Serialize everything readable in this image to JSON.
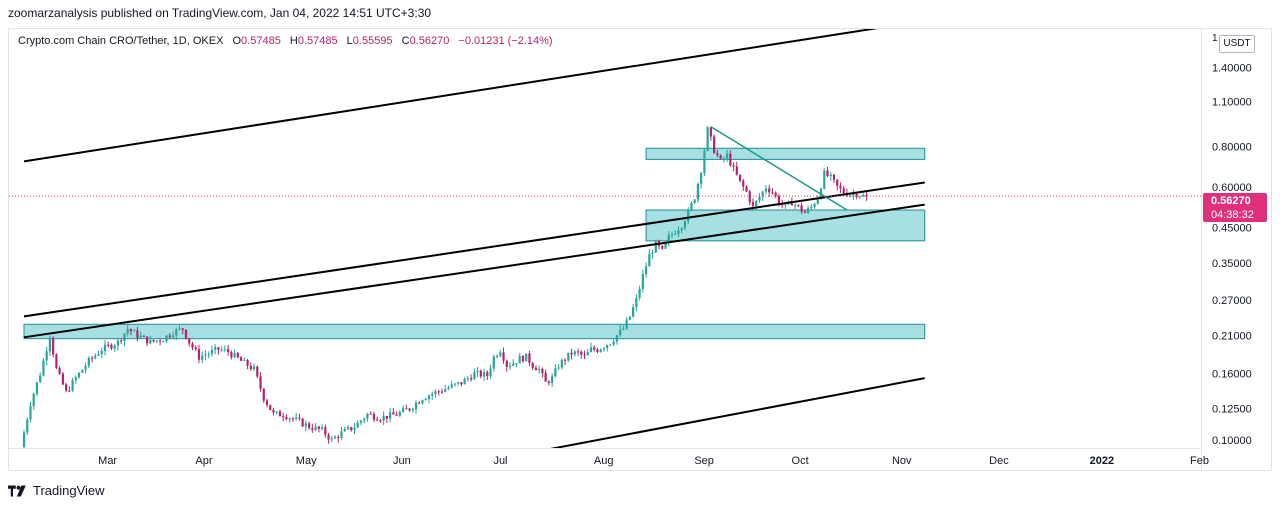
{
  "header": {
    "publisher_line": "zoomarzanalysis published on TradingView.com, Jan 04, 2022 14:51 UTC+3:30"
  },
  "legend": {
    "symbol": "Crypto.com Chain CRO/Tether, 1D, OKEX",
    "open_label": "O",
    "open": "0.57485",
    "high_label": "H",
    "high": "0.57485",
    "low_label": "L",
    "low": "0.55595",
    "close_label": "C",
    "close": "0.56270",
    "change": "−0.01231 (−2.14%)"
  },
  "currency": "USDT",
  "axis_top_fragment": "1",
  "price_tag": {
    "price": "0.56270",
    "countdown": "04:38:32"
  },
  "footer": {
    "brand": "TradingView"
  },
  "colors": {
    "up": "#26a69a",
    "down": "#b5226b",
    "zone": "#4dc1c8",
    "line": "#000000",
    "tag": "#e0307b"
  },
  "chart_data": {
    "type": "candlestick",
    "scale": "log",
    "y_ticks": [
      1.4,
      1.1,
      0.8,
      0.6,
      0.45,
      0.35,
      0.27,
      0.21,
      0.16,
      0.125,
      0.1
    ],
    "y_tick_labels": [
      "1.40000",
      "1.10000",
      "0.80000",
      "0.60000",
      "0.45000",
      "0.35000",
      "0.27000",
      "0.21000",
      "0.16000",
      "0.12500",
      "0.10000"
    ],
    "x_labels": [
      "Mar",
      "Apr",
      "May",
      "Jun",
      "Jul",
      "Aug",
      "Sep",
      "Oct",
      "Nov",
      "Dec",
      "2022",
      "Feb"
    ],
    "x_label_days": [
      34,
      64,
      95,
      125,
      156,
      187,
      218,
      248,
      279,
      309,
      340,
      371
    ],
    "last_price": 0.5627,
    "anchors": [
      [
        0,
        0.095
      ],
      [
        3,
        0.13
      ],
      [
        6,
        0.16
      ],
      [
        9,
        0.21
      ],
      [
        11,
        0.165
      ],
      [
        14,
        0.14
      ],
      [
        17,
        0.155
      ],
      [
        21,
        0.175
      ],
      [
        25,
        0.19
      ],
      [
        30,
        0.2
      ],
      [
        33,
        0.22
      ],
      [
        36,
        0.21
      ],
      [
        40,
        0.2
      ],
      [
        44,
        0.205
      ],
      [
        47,
        0.215
      ],
      [
        50,
        0.22
      ],
      [
        52,
        0.2
      ],
      [
        55,
        0.18
      ],
      [
        58,
        0.185
      ],
      [
        61,
        0.19
      ],
      [
        64,
        0.187
      ],
      [
        68,
        0.175
      ],
      [
        72,
        0.165
      ],
      [
        75,
        0.135
      ],
      [
        78,
        0.12
      ],
      [
        81,
        0.12
      ],
      [
        85,
        0.115
      ],
      [
        89,
        0.11
      ],
      [
        93,
        0.107
      ],
      [
        96,
        0.1
      ],
      [
        99,
        0.105
      ],
      [
        103,
        0.11
      ],
      [
        107,
        0.12
      ],
      [
        111,
        0.117
      ],
      [
        116,
        0.12
      ],
      [
        120,
        0.125
      ],
      [
        124,
        0.135
      ],
      [
        128,
        0.14
      ],
      [
        132,
        0.145
      ],
      [
        136,
        0.15
      ],
      [
        140,
        0.16
      ],
      [
        144,
        0.158
      ],
      [
        146,
        0.18
      ],
      [
        148,
        0.19
      ],
      [
        150,
        0.17
      ],
      [
        152,
        0.173
      ],
      [
        154,
        0.178
      ],
      [
        156,
        0.18
      ],
      [
        158,
        0.17
      ],
      [
        160,
        0.165
      ],
      [
        162,
        0.15
      ],
      [
        164,
        0.155
      ],
      [
        166,
        0.17
      ],
      [
        168,
        0.178
      ],
      [
        170,
        0.185
      ],
      [
        172,
        0.185
      ],
      [
        174,
        0.18
      ],
      [
        176,
        0.19
      ],
      [
        178,
        0.19
      ],
      [
        180,
        0.195
      ],
      [
        182,
        0.2
      ],
      [
        184,
        0.21
      ],
      [
        186,
        0.22
      ],
      [
        188,
        0.24
      ],
      [
        190,
        0.27
      ],
      [
        192,
        0.32
      ],
      [
        194,
        0.37
      ],
      [
        196,
        0.4
      ],
      [
        198,
        0.38
      ],
      [
        200,
        0.42
      ],
      [
        202,
        0.44
      ],
      [
        204,
        0.46
      ],
      [
        206,
        0.5
      ],
      [
        208,
        0.56
      ],
      [
        210,
        0.68
      ],
      [
        212,
        0.9
      ],
      [
        214,
        0.78
      ],
      [
        216,
        0.72
      ],
      [
        218,
        0.75
      ],
      [
        220,
        0.68
      ],
      [
        222,
        0.62
      ],
      [
        224,
        0.58
      ],
      [
        226,
        0.52
      ],
      [
        228,
        0.56
      ],
      [
        230,
        0.6
      ],
      [
        232,
        0.58
      ],
      [
        234,
        0.54
      ],
      [
        236,
        0.52
      ],
      [
        238,
        0.54
      ],
      [
        240,
        0.52
      ],
      [
        242,
        0.5
      ],
      [
        244,
        0.52
      ],
      [
        246,
        0.56
      ],
      [
        248,
        0.66
      ],
      [
        250,
        0.64
      ],
      [
        252,
        0.6
      ],
      [
        254,
        0.58
      ],
      [
        256,
        0.57
      ],
      [
        258,
        0.575
      ],
      [
        260,
        0.5627
      ]
    ],
    "zones": [
      {
        "day_from": 192,
        "day_to": 278,
        "from": 0.73,
        "to": 0.79
      },
      {
        "day_from": 192,
        "day_to": 278,
        "from": 0.41,
        "to": 0.51
      },
      {
        "day_from": 0,
        "day_to": 278,
        "from": 0.205,
        "to": 0.227
      }
    ],
    "trendlines": [
      {
        "d1": 0,
        "p1": 0.72,
        "d2": 278,
        "p2": 1.95
      },
      {
        "d1": 0,
        "p1": 0.24,
        "d2": 278,
        "p2": 0.62
      },
      {
        "d1": 0,
        "p1": 0.207,
        "d2": 278,
        "p2": 0.53
      },
      {
        "d1": 145,
        "p1": 0.087,
        "d2": 278,
        "p2": 0.155
      },
      {
        "d1": 212,
        "p1": 0.92,
        "d2": 254,
        "p2": 0.51
      }
    ]
  }
}
